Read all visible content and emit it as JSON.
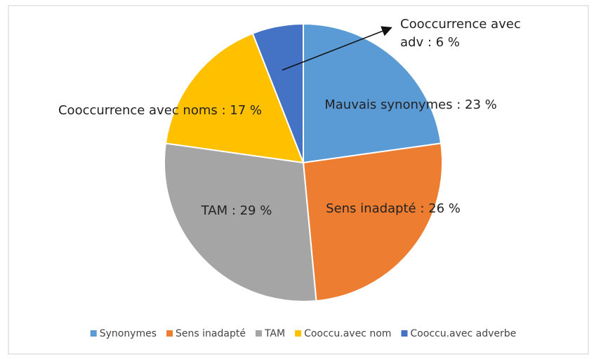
{
  "chart_data": {
    "type": "pie",
    "categories": [
      "Synonymes",
      "Sens inadapté",
      "TAM",
      "Cooccu.avec nom",
      "Cooccu.avec adverbe"
    ],
    "values": [
      23,
      26,
      29,
      17,
      6
    ],
    "value_labels": [
      "Mauvais synonymes : 23 %",
      "Sens inadapté : 26 %",
      "TAM : 29 %",
      "Cooccurrence avec noms : 17 %",
      "Cooccurrence avec adv : 6 %"
    ],
    "colors": [
      "#5b9bd5",
      "#ed7d31",
      "#a5a5a5",
      "#ffc000",
      "#4472c4"
    ],
    "legend": "bottom"
  }
}
